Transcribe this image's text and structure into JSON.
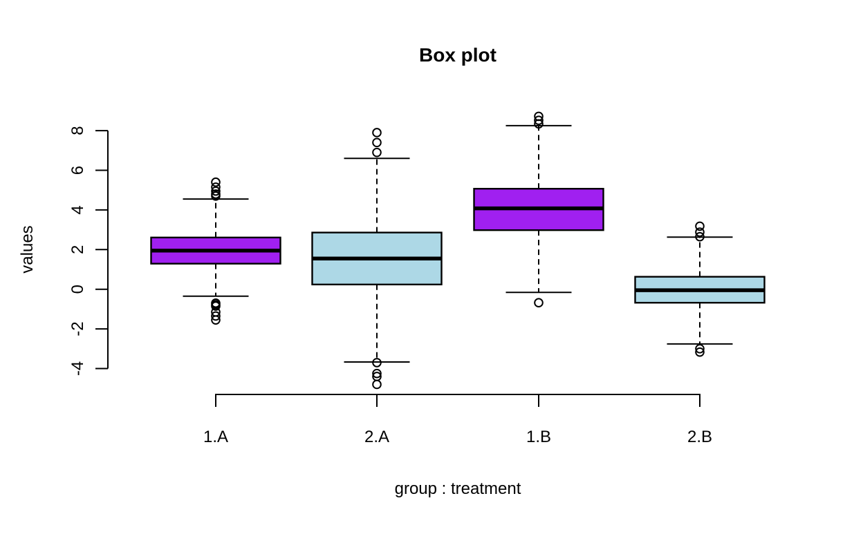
{
  "chart_data": {
    "type": "box",
    "title": "Box plot",
    "xlabel": "group : treatment",
    "ylabel": "values",
    "categories": [
      "1.A",
      "2.A",
      "1.B",
      "2.B"
    ],
    "y_ticks": [
      -4,
      -2,
      0,
      2,
      4,
      6,
      8
    ],
    "ylim": [
      -4.9,
      8.8
    ],
    "grid": false,
    "legend": "none",
    "colors": {
      "purple_fill": "#A020F0",
      "lightblue_fill": "#ADD8E6",
      "stroke": "#000000",
      "background": "#FFFFFF"
    },
    "series": [
      {
        "label": "1.A",
        "fill_key": "purple_fill",
        "fill": "#A020F0",
        "whisker_low": -0.35,
        "q1": 1.29,
        "median": 1.95,
        "q3": 2.61,
        "whisker_high": 4.55,
        "outliers": [
          5.4,
          5.15,
          4.95,
          4.8,
          4.7,
          -0.7,
          -0.78,
          -0.85,
          -1.15,
          -1.35,
          -1.55
        ]
      },
      {
        "label": "2.A",
        "fill_key": "lightblue_fill",
        "fill": "#ADD8E6",
        "whisker_low": -3.67,
        "q1": 0.24,
        "median": 1.55,
        "q3": 2.86,
        "whisker_high": 6.6,
        "outliers": [
          7.9,
          7.4,
          6.9,
          -3.7,
          -4.25,
          -4.4,
          -4.8
        ]
      },
      {
        "label": "1.B",
        "fill_key": "purple_fill",
        "fill": "#A020F0",
        "whisker_low": -0.16,
        "q1": 2.98,
        "median": 4.08,
        "q3": 5.07,
        "whisker_high": 8.25,
        "outliers": [
          8.72,
          8.52,
          8.34,
          -0.68
        ]
      },
      {
        "label": "2.B",
        "fill_key": "lightblue_fill",
        "fill": "#ADD8E6",
        "whisker_low": -2.76,
        "q1": -0.68,
        "median": -0.05,
        "q3": 0.63,
        "whisker_high": 2.63,
        "outliers": [
          3.18,
          2.88,
          2.65,
          -3.0,
          -3.17
        ]
      }
    ]
  }
}
